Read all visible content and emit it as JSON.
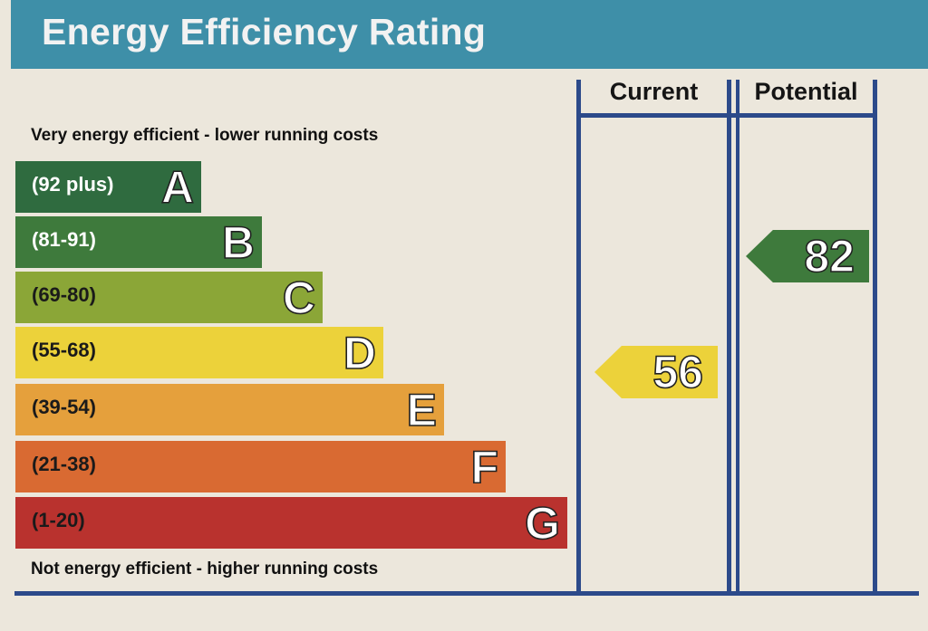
{
  "title": "Energy Efficiency Rating",
  "columns": {
    "current": "Current",
    "potential": "Potential"
  },
  "top_caption": "Very energy efficient - lower running costs",
  "bottom_caption": "Not energy efficient - higher running costs",
  "bands": [
    {
      "letter": "A",
      "range": "(92 plus)",
      "color": "#2f6b3f",
      "text_color": "#ffffff"
    },
    {
      "letter": "B",
      "range": "(81-91)",
      "color": "#3e7a3c",
      "text_color": "#ffffff"
    },
    {
      "letter": "C",
      "range": "(69-80)",
      "color": "#8ba637",
      "text_color": "#1a1a1a"
    },
    {
      "letter": "D",
      "range": "(55-68)",
      "color": "#ecd23a",
      "text_color": "#1a1a1a"
    },
    {
      "letter": "E",
      "range": "(39-54)",
      "color": "#e5a03c",
      "text_color": "#1a1a1a"
    },
    {
      "letter": "F",
      "range": "(21-38)",
      "color": "#d96a32",
      "text_color": "#1a1a1a"
    },
    {
      "letter": "G",
      "range": "(1-20)",
      "color": "#b9322e",
      "text_color": "#1a1a1a"
    }
  ],
  "ratings": {
    "current": {
      "value": "56",
      "band": "D",
      "color": "#ecd23a"
    },
    "potential": {
      "value": "82",
      "band": "B",
      "color": "#3e7a3c"
    }
  }
}
